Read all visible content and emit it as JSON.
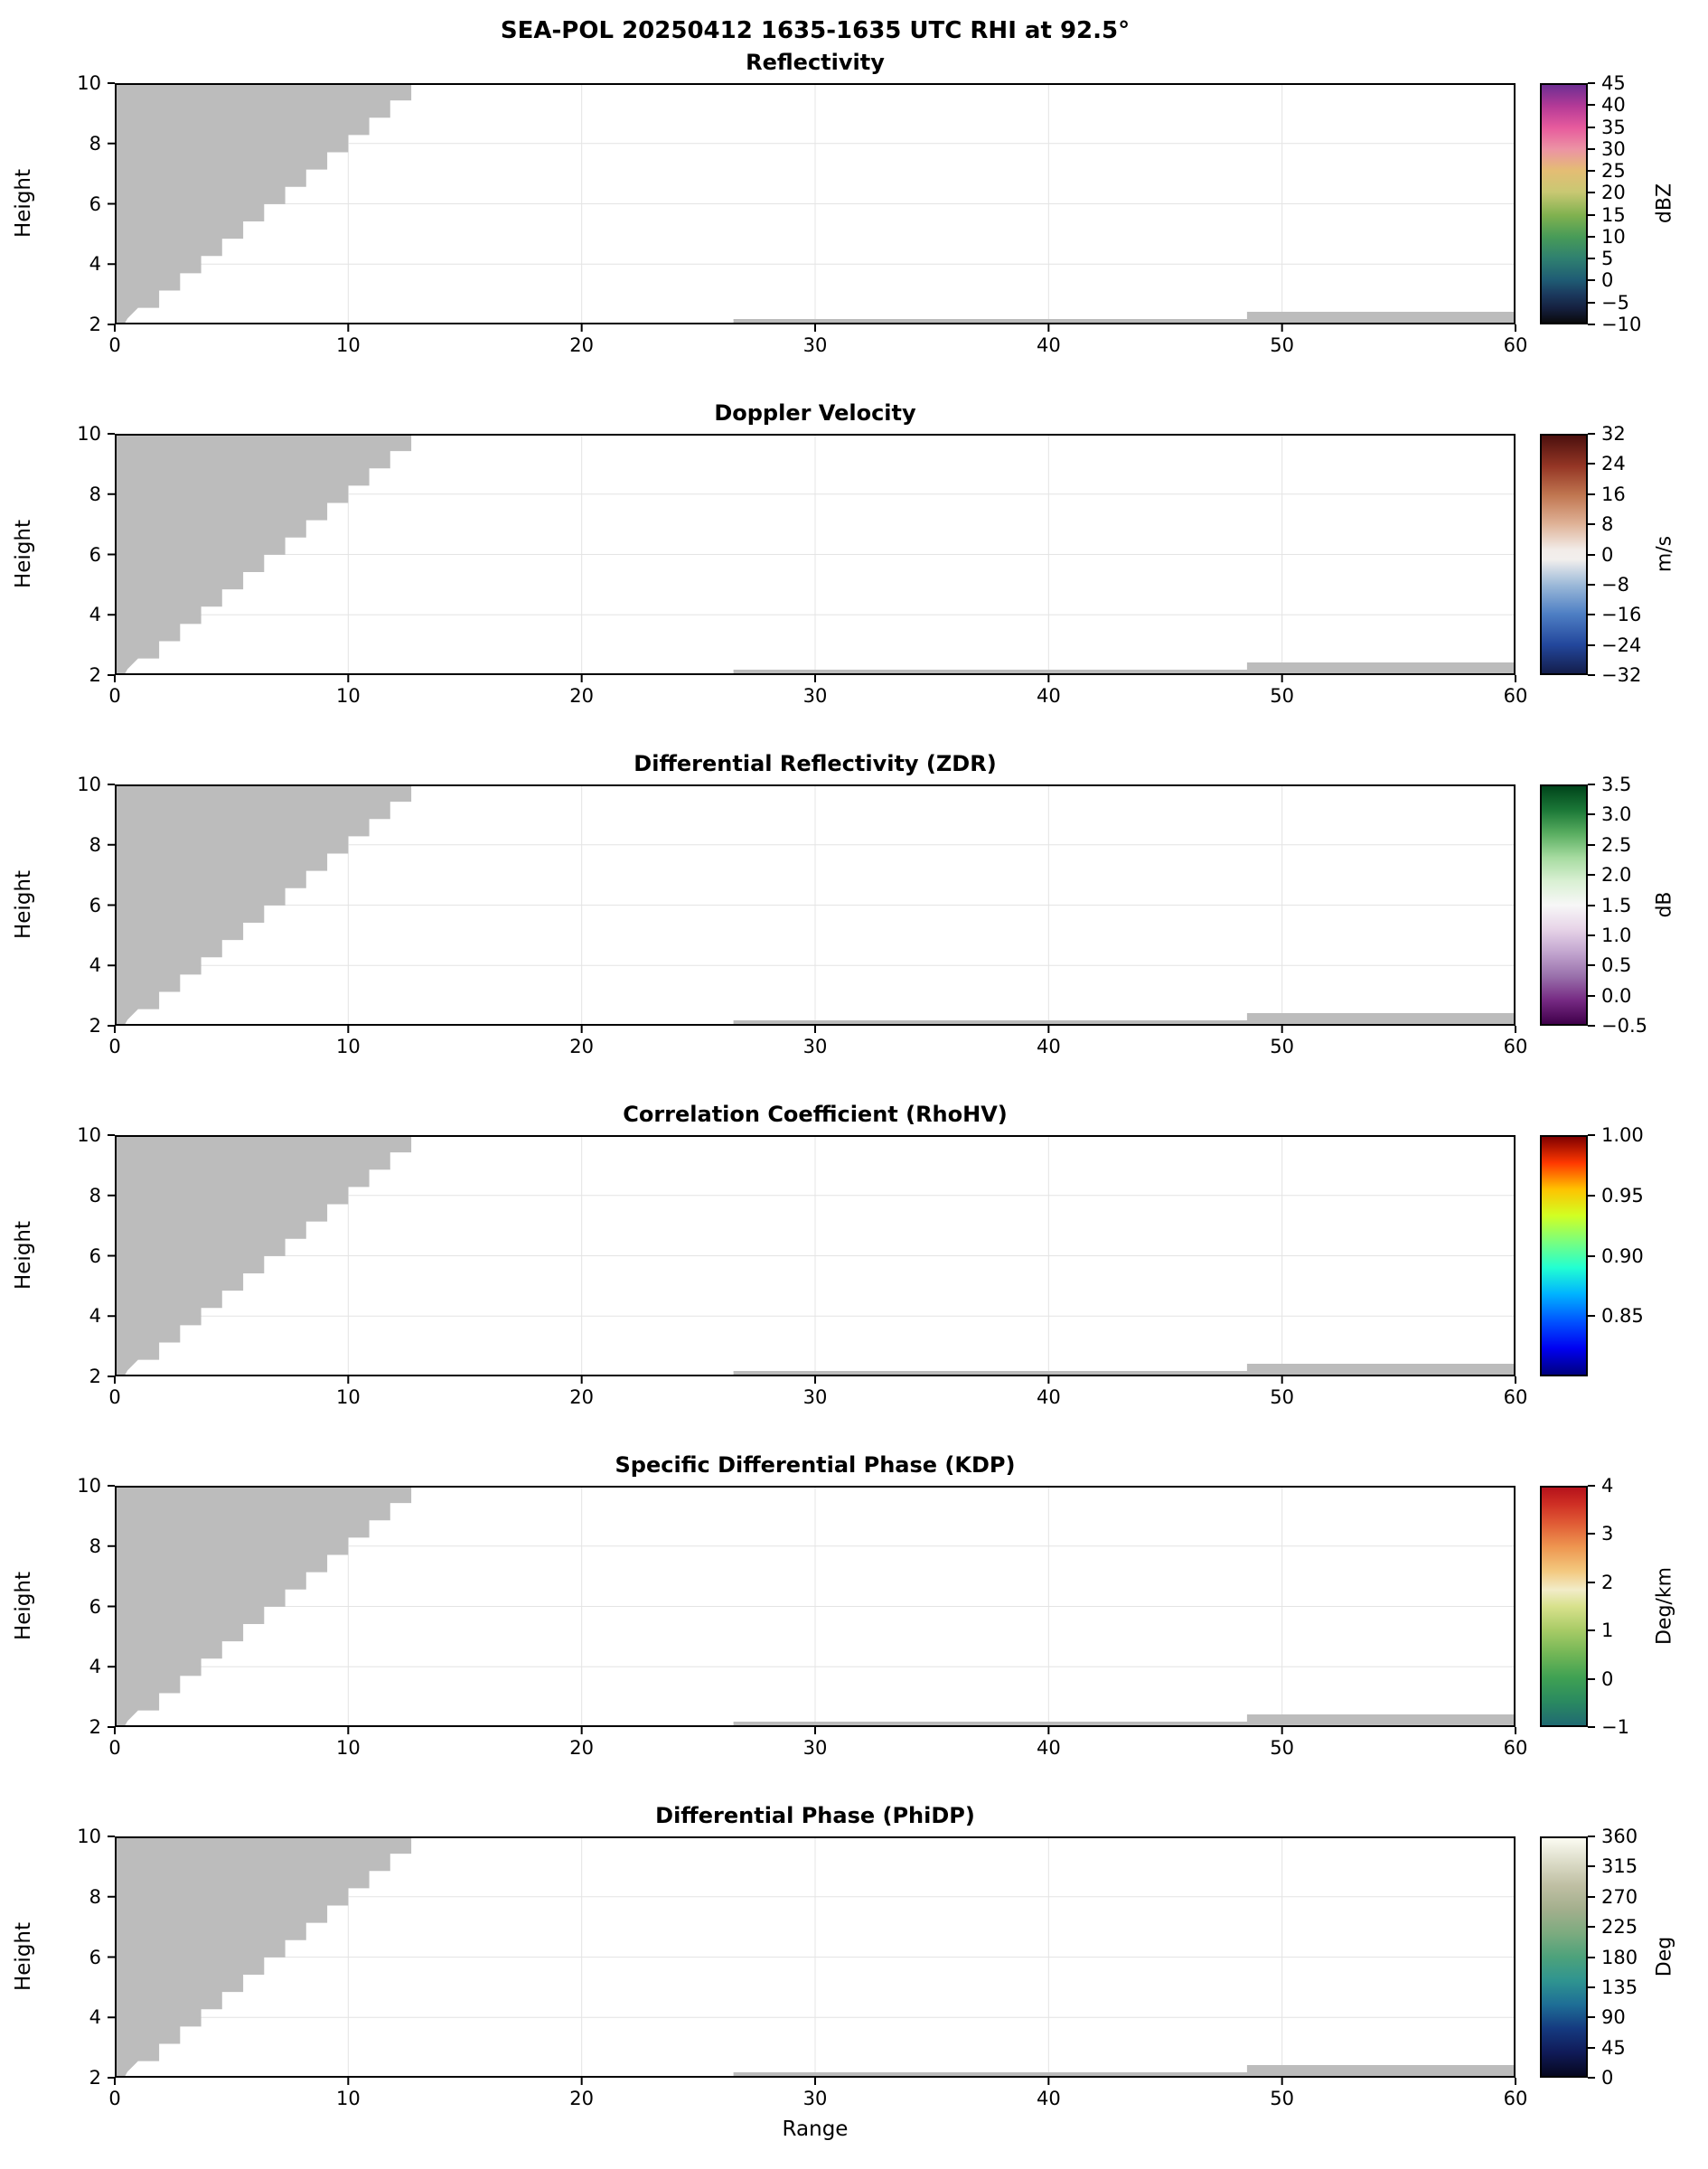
{
  "figure": {
    "suptitle": "SEA-POL 20250412 1635-1635 UTC RHI at 92.5°"
  },
  "chart_data": {
    "type": "heatmap",
    "suptitle": "SEA-POL 20250412 1635-1635 UTC RHI at 92.5°",
    "xlabel": "Range",
    "ylabel": "Height",
    "xlim": [
      0,
      60
    ],
    "ylim": [
      2,
      10
    ],
    "xticks": [
      0,
      10,
      20,
      30,
      40,
      50,
      60
    ],
    "xtick_labels": [
      "0",
      "10",
      "20",
      "30",
      "40",
      "50",
      "60"
    ],
    "yticks": [
      2,
      4,
      6,
      8,
      10
    ],
    "ytick_labels": [
      "2",
      "4",
      "6",
      "8",
      "10"
    ],
    "grid": true,
    "grid_color": "#e4e4e4",
    "mask_color": "#bcbcbc",
    "note": "All six RHI panels show only a gray no-data mask: a stepped wedge in the upper-left (blocked near-radar cone from x=0 to ~12.7 at top) and thin gray strips along the bottom (x 26.5-60 up to ~2.18, x 48.5-60 up to ~2.42); no colored echo values are visible.",
    "mask_regions": {
      "wedge": {
        "left_x": 0,
        "bottom_y": 2.0,
        "y_top": 10,
        "x_top": 12.7,
        "x_bot": 1.0,
        "y_bot": 2.55,
        "steps": 13,
        "tail": [
          [
            0.55,
            2.2
          ],
          [
            0.4,
            2.0
          ]
        ]
      },
      "strips": [
        {
          "x0": 26.5,
          "x1": 60,
          "y0": 2.0,
          "y1": 2.18
        },
        {
          "x0": 48.5,
          "x1": 60,
          "y0": 2.0,
          "y1": 2.42
        }
      ]
    },
    "panels": [
      {
        "title": "Reflectivity",
        "unit": "dBZ",
        "vmin": -10,
        "vmax": 45,
        "cbar_ticks": [
          45,
          40,
          35,
          30,
          25,
          20,
          15,
          10,
          5,
          0,
          -5,
          -10
        ],
        "cbar_tick_labels": [
          "45",
          "40",
          "35",
          "30",
          "25",
          "20",
          "15",
          "10",
          "5",
          "0",
          "−5",
          "−10"
        ],
        "gradient": [
          [
            0,
            "#0a0a0c"
          ],
          [
            0.06,
            "#15203f"
          ],
          [
            0.12,
            "#1b3a5e"
          ],
          [
            0.18,
            "#1f5c74"
          ],
          [
            0.27,
            "#2f8070"
          ],
          [
            0.36,
            "#479b58"
          ],
          [
            0.45,
            "#7fb14f"
          ],
          [
            0.55,
            "#c9c873"
          ],
          [
            0.64,
            "#e4bd74"
          ],
          [
            0.73,
            "#ec93a4"
          ],
          [
            0.82,
            "#e75b9d"
          ],
          [
            0.91,
            "#b53a97"
          ],
          [
            1,
            "#6e2e92"
          ]
        ]
      },
      {
        "title": "Doppler Velocity",
        "unit": "m/s",
        "vmin": -32,
        "vmax": 32,
        "cbar_ticks": [
          32,
          24,
          16,
          8,
          0,
          -8,
          -16,
          -24,
          -32
        ],
        "cbar_tick_labels": [
          "32",
          "24",
          "16",
          "8",
          "0",
          "−8",
          "−16",
          "−24",
          "−32"
        ],
        "gradient": [
          [
            0,
            "#141e4c"
          ],
          [
            0.12,
            "#23479c"
          ],
          [
            0.25,
            "#4e7fc4"
          ],
          [
            0.37,
            "#9ab8d8"
          ],
          [
            0.48,
            "#f2efed"
          ],
          [
            0.52,
            "#f2ece8"
          ],
          [
            0.63,
            "#dfb196"
          ],
          [
            0.75,
            "#c07650"
          ],
          [
            0.87,
            "#953625"
          ],
          [
            1,
            "#4c100e"
          ]
        ]
      },
      {
        "title": "Differential Reflectivity (ZDR)",
        "unit": "dB",
        "vmin": -0.5,
        "vmax": 3.5,
        "cbar_ticks": [
          3.5,
          3.0,
          2.5,
          2.0,
          1.5,
          1.0,
          0.5,
          0.0,
          -0.5
        ],
        "cbar_tick_labels": [
          "3.5",
          "3.0",
          "2.5",
          "2.0",
          "1.5",
          "1.0",
          "0.5",
          "0.0",
          "−0.5"
        ],
        "gradient": [
          [
            0,
            "#40004b"
          ],
          [
            0.1,
            "#762a83"
          ],
          [
            0.2,
            "#9970ab"
          ],
          [
            0.3,
            "#c2a5cf"
          ],
          [
            0.4,
            "#e7d4e8"
          ],
          [
            0.5,
            "#f7f7f7"
          ],
          [
            0.6,
            "#d9f0d3"
          ],
          [
            0.7,
            "#a6dba0"
          ],
          [
            0.8,
            "#5aae61"
          ],
          [
            0.9,
            "#1b7837"
          ],
          [
            1,
            "#00441b"
          ]
        ]
      },
      {
        "title": "Correlation Coefficient (RhoHV)",
        "unit": "",
        "vmin": 0.8,
        "vmax": 1.0,
        "cbar_ticks": [
          1.0,
          0.95,
          0.9,
          0.85
        ],
        "cbar_tick_labels": [
          "1.00",
          "0.95",
          "0.90",
          "0.85"
        ],
        "gradient": [
          [
            0,
            "#000080"
          ],
          [
            0.11,
            "#0000f1"
          ],
          [
            0.22,
            "#0050ff"
          ],
          [
            0.34,
            "#00b4ff"
          ],
          [
            0.45,
            "#22ffd2"
          ],
          [
            0.56,
            "#7aff7d"
          ],
          [
            0.67,
            "#d2ff22"
          ],
          [
            0.78,
            "#ffc200"
          ],
          [
            0.89,
            "#ff3800"
          ],
          [
            1,
            "#800000"
          ]
        ]
      },
      {
        "title": "Specific Differential Phase (KDP)",
        "unit": "Deg/km",
        "vmin": -1,
        "vmax": 4,
        "cbar_ticks": [
          4,
          3,
          2,
          1,
          0,
          -1
        ],
        "cbar_tick_labels": [
          "4",
          "3",
          "2",
          "1",
          "0",
          "−1"
        ],
        "gradient": [
          [
            0,
            "#206a72"
          ],
          [
            0.1,
            "#2a8a60"
          ],
          [
            0.2,
            "#3fa153"
          ],
          [
            0.3,
            "#72b656"
          ],
          [
            0.4,
            "#a8cb66"
          ],
          [
            0.5,
            "#d8e18c"
          ],
          [
            0.57,
            "#f2ecc8"
          ],
          [
            0.65,
            "#f3c87e"
          ],
          [
            0.75,
            "#ee9650"
          ],
          [
            0.85,
            "#e05b35"
          ],
          [
            0.93,
            "#cf2f24"
          ],
          [
            1,
            "#b5121b"
          ]
        ]
      },
      {
        "title": "Differential Phase (PhiDP)",
        "unit": "Deg",
        "vmin": 0,
        "vmax": 360,
        "cbar_ticks": [
          360,
          315,
          270,
          225,
          180,
          135,
          90,
          45,
          0
        ],
        "cbar_tick_labels": [
          "360",
          "315",
          "270",
          "225",
          "180",
          "135",
          "90",
          "45",
          "0"
        ],
        "gradient": [
          [
            0,
            "#06071f"
          ],
          [
            0.1,
            "#101b59"
          ],
          [
            0.2,
            "#153a80"
          ],
          [
            0.3,
            "#1e6e96"
          ],
          [
            0.4,
            "#2f9490"
          ],
          [
            0.5,
            "#4da27b"
          ],
          [
            0.6,
            "#7cab7f"
          ],
          [
            0.7,
            "#a3af8d"
          ],
          [
            0.8,
            "#bfbfa3"
          ],
          [
            0.9,
            "#dcdcc8"
          ],
          [
            1,
            "#fbfbf2"
          ]
        ]
      }
    ]
  }
}
